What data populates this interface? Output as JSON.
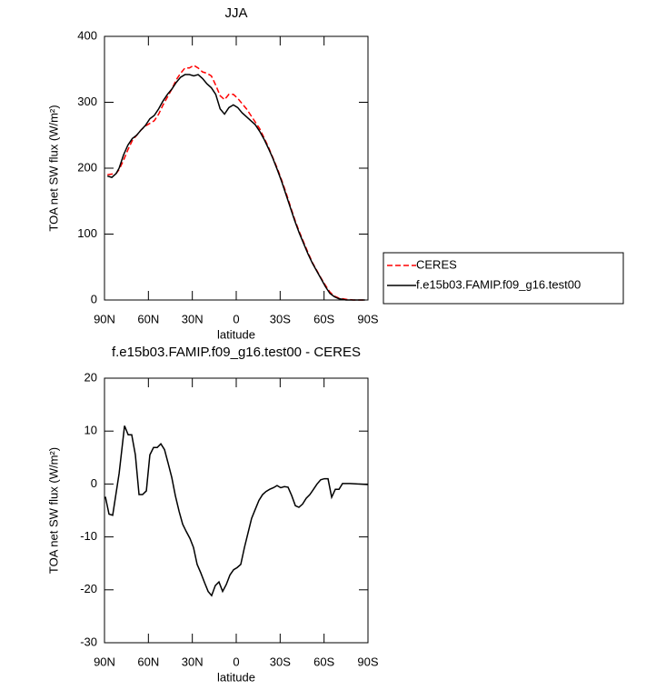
{
  "chart_data": [
    {
      "type": "line",
      "title": "JJA",
      "xlabel": "latitude",
      "ylabel": "TOA net SW flux (W/m²)",
      "x": [
        88,
        85,
        82,
        80,
        77,
        74,
        71,
        68,
        65,
        62,
        59,
        56,
        53,
        50,
        47,
        44,
        41,
        38,
        35,
        32,
        29,
        26,
        23,
        20,
        17,
        14,
        11,
        8,
        5,
        2,
        -1,
        -4,
        -7,
        -10,
        -13,
        -16,
        -19,
        -22,
        -25,
        -28,
        -31,
        -34,
        -37,
        -40,
        -43,
        -46,
        -49,
        -52,
        -55,
        -58,
        -61,
        -64,
        -67,
        -70,
        -75,
        -80,
        -88
      ],
      "series": [
        {
          "name": "CERES",
          "color": "#ff0000",
          "dash": true,
          "values": [
            190,
            191,
            192,
            198,
            212,
            228,
            242,
            250,
            258,
            264,
            268,
            272,
            282,
            296,
            308,
            320,
            334,
            344,
            352,
            352,
            356,
            352,
            346,
            344,
            340,
            326,
            310,
            304,
            312,
            312,
            306,
            298,
            290,
            280,
            270,
            260,
            246,
            232,
            216,
            200,
            182,
            163,
            142,
            122,
            104,
            88,
            72,
            57,
            45,
            33,
            22,
            12,
            6,
            3,
            1,
            0,
            0
          ]
        },
        {
          "name": "f.e15b03.FAMIP.f09_g16.test00",
          "color": "#000000",
          "dash": false,
          "values": [
            188,
            186,
            192,
            200,
            220,
            235,
            245,
            250,
            258,
            265,
            275,
            280,
            290,
            302,
            312,
            320,
            330,
            338,
            342,
            342,
            340,
            342,
            336,
            328,
            322,
            312,
            290,
            282,
            292,
            296,
            292,
            284,
            278,
            272,
            266,
            256,
            244,
            230,
            215,
            198,
            180,
            160,
            140,
            120,
            102,
            86,
            70,
            56,
            44,
            32,
            20,
            10,
            5,
            2,
            0,
            0,
            0
          ]
        }
      ],
      "xlim": [
        90,
        -90
      ],
      "xticks": [
        {
          "value": 90,
          "label": "90N"
        },
        {
          "value": 60,
          "label": "60N"
        },
        {
          "value": 30,
          "label": "30N"
        },
        0,
        {
          "value": -30,
          "label": "30S"
        },
        {
          "value": -60,
          "label": "60S"
        },
        {
          "value": -90,
          "label": "90S"
        }
      ],
      "ylim": [
        0,
        400
      ],
      "yticks": [
        0,
        100,
        200,
        300,
        400
      ]
    },
    {
      "type": "line",
      "title": "f.e15b03.FAMIP.f09_g16.test00 - CERES",
      "xlabel": "latitude",
      "ylabel": "TOA net SW flux (W/m²)",
      "x": [
        89.4,
        86.9,
        84.4,
        80,
        76.3,
        73.8,
        71.4,
        68.9,
        66.4,
        64,
        61.4,
        59,
        56.5,
        54,
        51.5,
        49,
        46.6,
        44,
        41.6,
        39,
        36.6,
        34.1,
        31.6,
        29.2,
        26.7,
        24.2,
        21.7,
        19.2,
        16.8,
        14.3,
        11.8,
        9.3,
        6.8,
        4.3,
        1.8,
        -0.6,
        -3.1,
        -5.6,
        -8,
        -10.5,
        -13,
        -15.5,
        -18,
        -20.4,
        -22.9,
        -25.4,
        -27.9,
        -30.4,
        -32.9,
        -35.4,
        -37.9,
        -40.4,
        -42.8,
        -45.3,
        -47.8,
        -50.3,
        -52.8,
        -55.2,
        -57.7,
        -60.2,
        -62.7,
        -65.2,
        -67.7,
        -70.2,
        -72.6,
        -77.6,
        -90
      ],
      "color": "#000000",
      "values": [
        -2.4,
        -5.7,
        -5.9,
        2,
        11,
        9.3,
        9.3,
        5.5,
        -2,
        -2,
        -1.3,
        5.5,
        6.9,
        6.9,
        7.6,
        6.5,
        4,
        1.2,
        -2.2,
        -5.2,
        -7.6,
        -9,
        -10.3,
        -12,
        -15.2,
        -16.8,
        -18.6,
        -20.3,
        -21.1,
        -19.2,
        -18.5,
        -20.3,
        -19,
        -17.2,
        -16.2,
        -15.8,
        -15.2,
        -12,
        -9.3,
        -6.5,
        -4.8,
        -3.1,
        -2,
        -1.4,
        -1,
        -0.7,
        -0.3,
        -0.7,
        -0.5,
        -0.6,
        -2.2,
        -4.1,
        -4.4,
        -3.8,
        -2.7,
        -2,
        -1,
        0,
        0.8,
        1,
        1,
        -2.5,
        -1,
        -1,
        0.1,
        0.1,
        -0.1
      ],
      "xlim": [
        90,
        -90
      ],
      "xticks": [
        {
          "value": 90,
          "label": "90N"
        },
        {
          "value": 60,
          "label": "60N"
        },
        {
          "value": 30,
          "label": "30N"
        },
        0,
        {
          "value": -30,
          "label": "30S"
        },
        {
          "value": -60,
          "label": "60S"
        },
        {
          "value": -90,
          "label": "90S"
        }
      ],
      "ylim": [
        -30,
        20
      ],
      "yticks": [
        -30,
        -20,
        -10,
        0,
        10,
        20
      ]
    }
  ]
}
